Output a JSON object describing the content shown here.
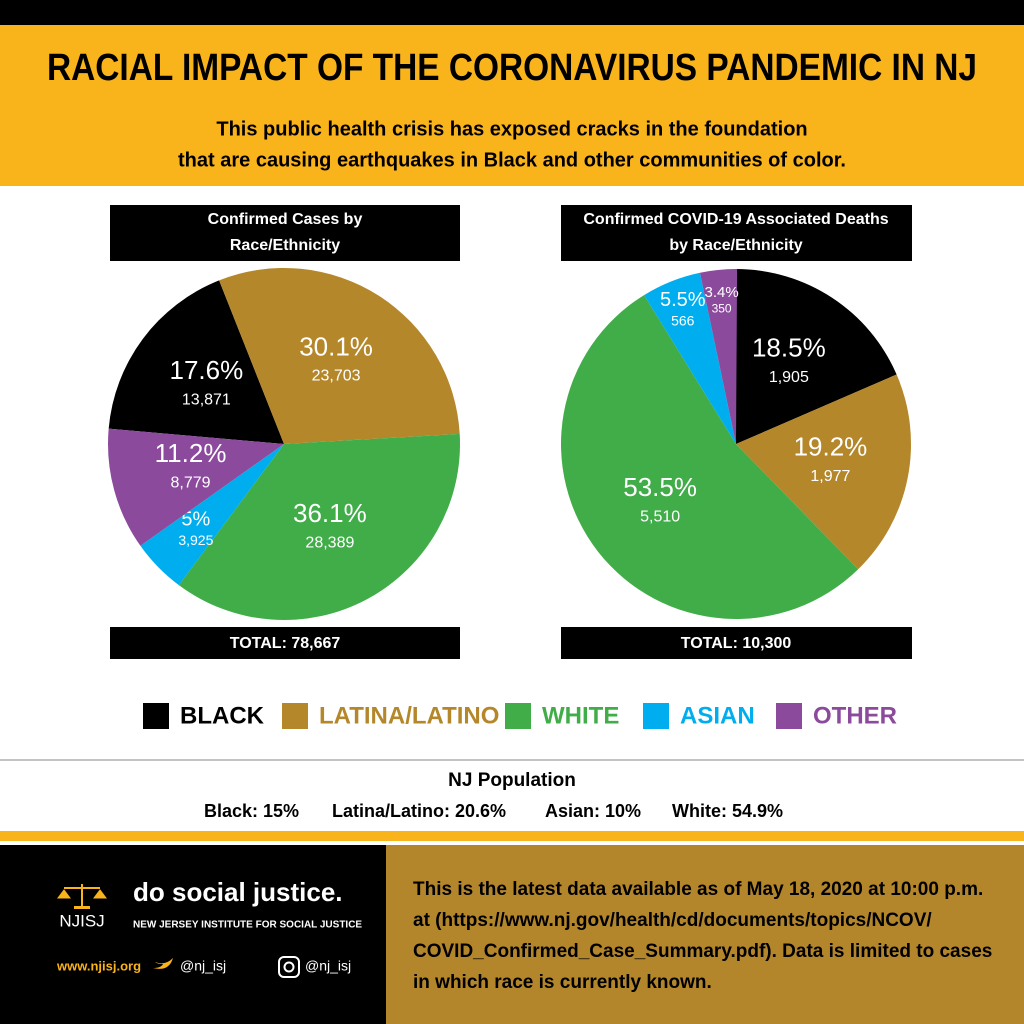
{
  "header": {
    "title": "RACIAL IMPACT OF THE CORONAVIRUS PANDEMIC IN NJ",
    "subtitle": [
      "This public health crisis has exposed cracks in the foundation",
      "that are causing earthquakes in Black and other communities of color."
    ]
  },
  "chart_data": [
    {
      "type": "pie",
      "title": [
        "Confirmed Cases by",
        "Race/Ethnicity"
      ],
      "categories": [
        "BLACK",
        "LATINA/LATINO",
        "WHITE",
        "ASIAN",
        "OTHER"
      ],
      "colors": [
        "#000000",
        "#b5872b",
        "#41ad49",
        "#00aeef",
        "#8b4a9c"
      ],
      "percents": [
        17.6,
        30.1,
        36.1,
        5,
        11.2
      ],
      "percent_labels": [
        "17.6%",
        "30.1%",
        "36.1%",
        "5%",
        "11.2%"
      ],
      "values": [
        13871,
        23703,
        28389,
        3925,
        8779
      ],
      "value_labels": [
        "13,871",
        "23,703",
        "28,389",
        "3,925",
        "8,779"
      ],
      "total_label": "TOTAL: 78,667"
    },
    {
      "type": "pie",
      "title": [
        "Confirmed COVID-19 Associated Deaths",
        "by Race/Ethnicity"
      ],
      "categories": [
        "BLACK",
        "LATINA/LATINO",
        "WHITE",
        "ASIAN",
        "OTHER"
      ],
      "colors": [
        "#000000",
        "#b5872b",
        "#41ad49",
        "#00aeef",
        "#8b4a9c"
      ],
      "percents": [
        18.5,
        19.2,
        53.5,
        5.5,
        3.4
      ],
      "percent_labels": [
        "18.5%",
        "19.2%",
        "53.5%",
        "5.5%",
        "3.4%"
      ],
      "values": [
        1905,
        1977,
        5510,
        566,
        350
      ],
      "value_labels": [
        "1,905",
        "1,977",
        "5,510",
        "566",
        "350"
      ],
      "total_label": "TOTAL: 10,300"
    }
  ],
  "population": {
    "title": "NJ Population",
    "items": [
      "Black: 15%",
      "Latina/Latino: 20.6%",
      "Asian: 10%",
      "White: 54.9%"
    ]
  },
  "footer": {
    "logo": "NJISJ",
    "slogan": "do social justice.",
    "org": "NEW JERSEY INSTITUTE FOR SOCIAL JUSTICE",
    "website": "www.njisj.org",
    "twitter": "@nj_isj",
    "instagram": "@nj_isj",
    "note": [
      "This is the latest data available as of May 18, 2020 at 10:00 p.m.",
      "at (https://www.nj.gov/health/cd/documents/topics/NCOV/",
      "COVID_Confirmed_Case_Summary.pdf). Data is limited to cases",
      "in which race is currently known."
    ]
  }
}
